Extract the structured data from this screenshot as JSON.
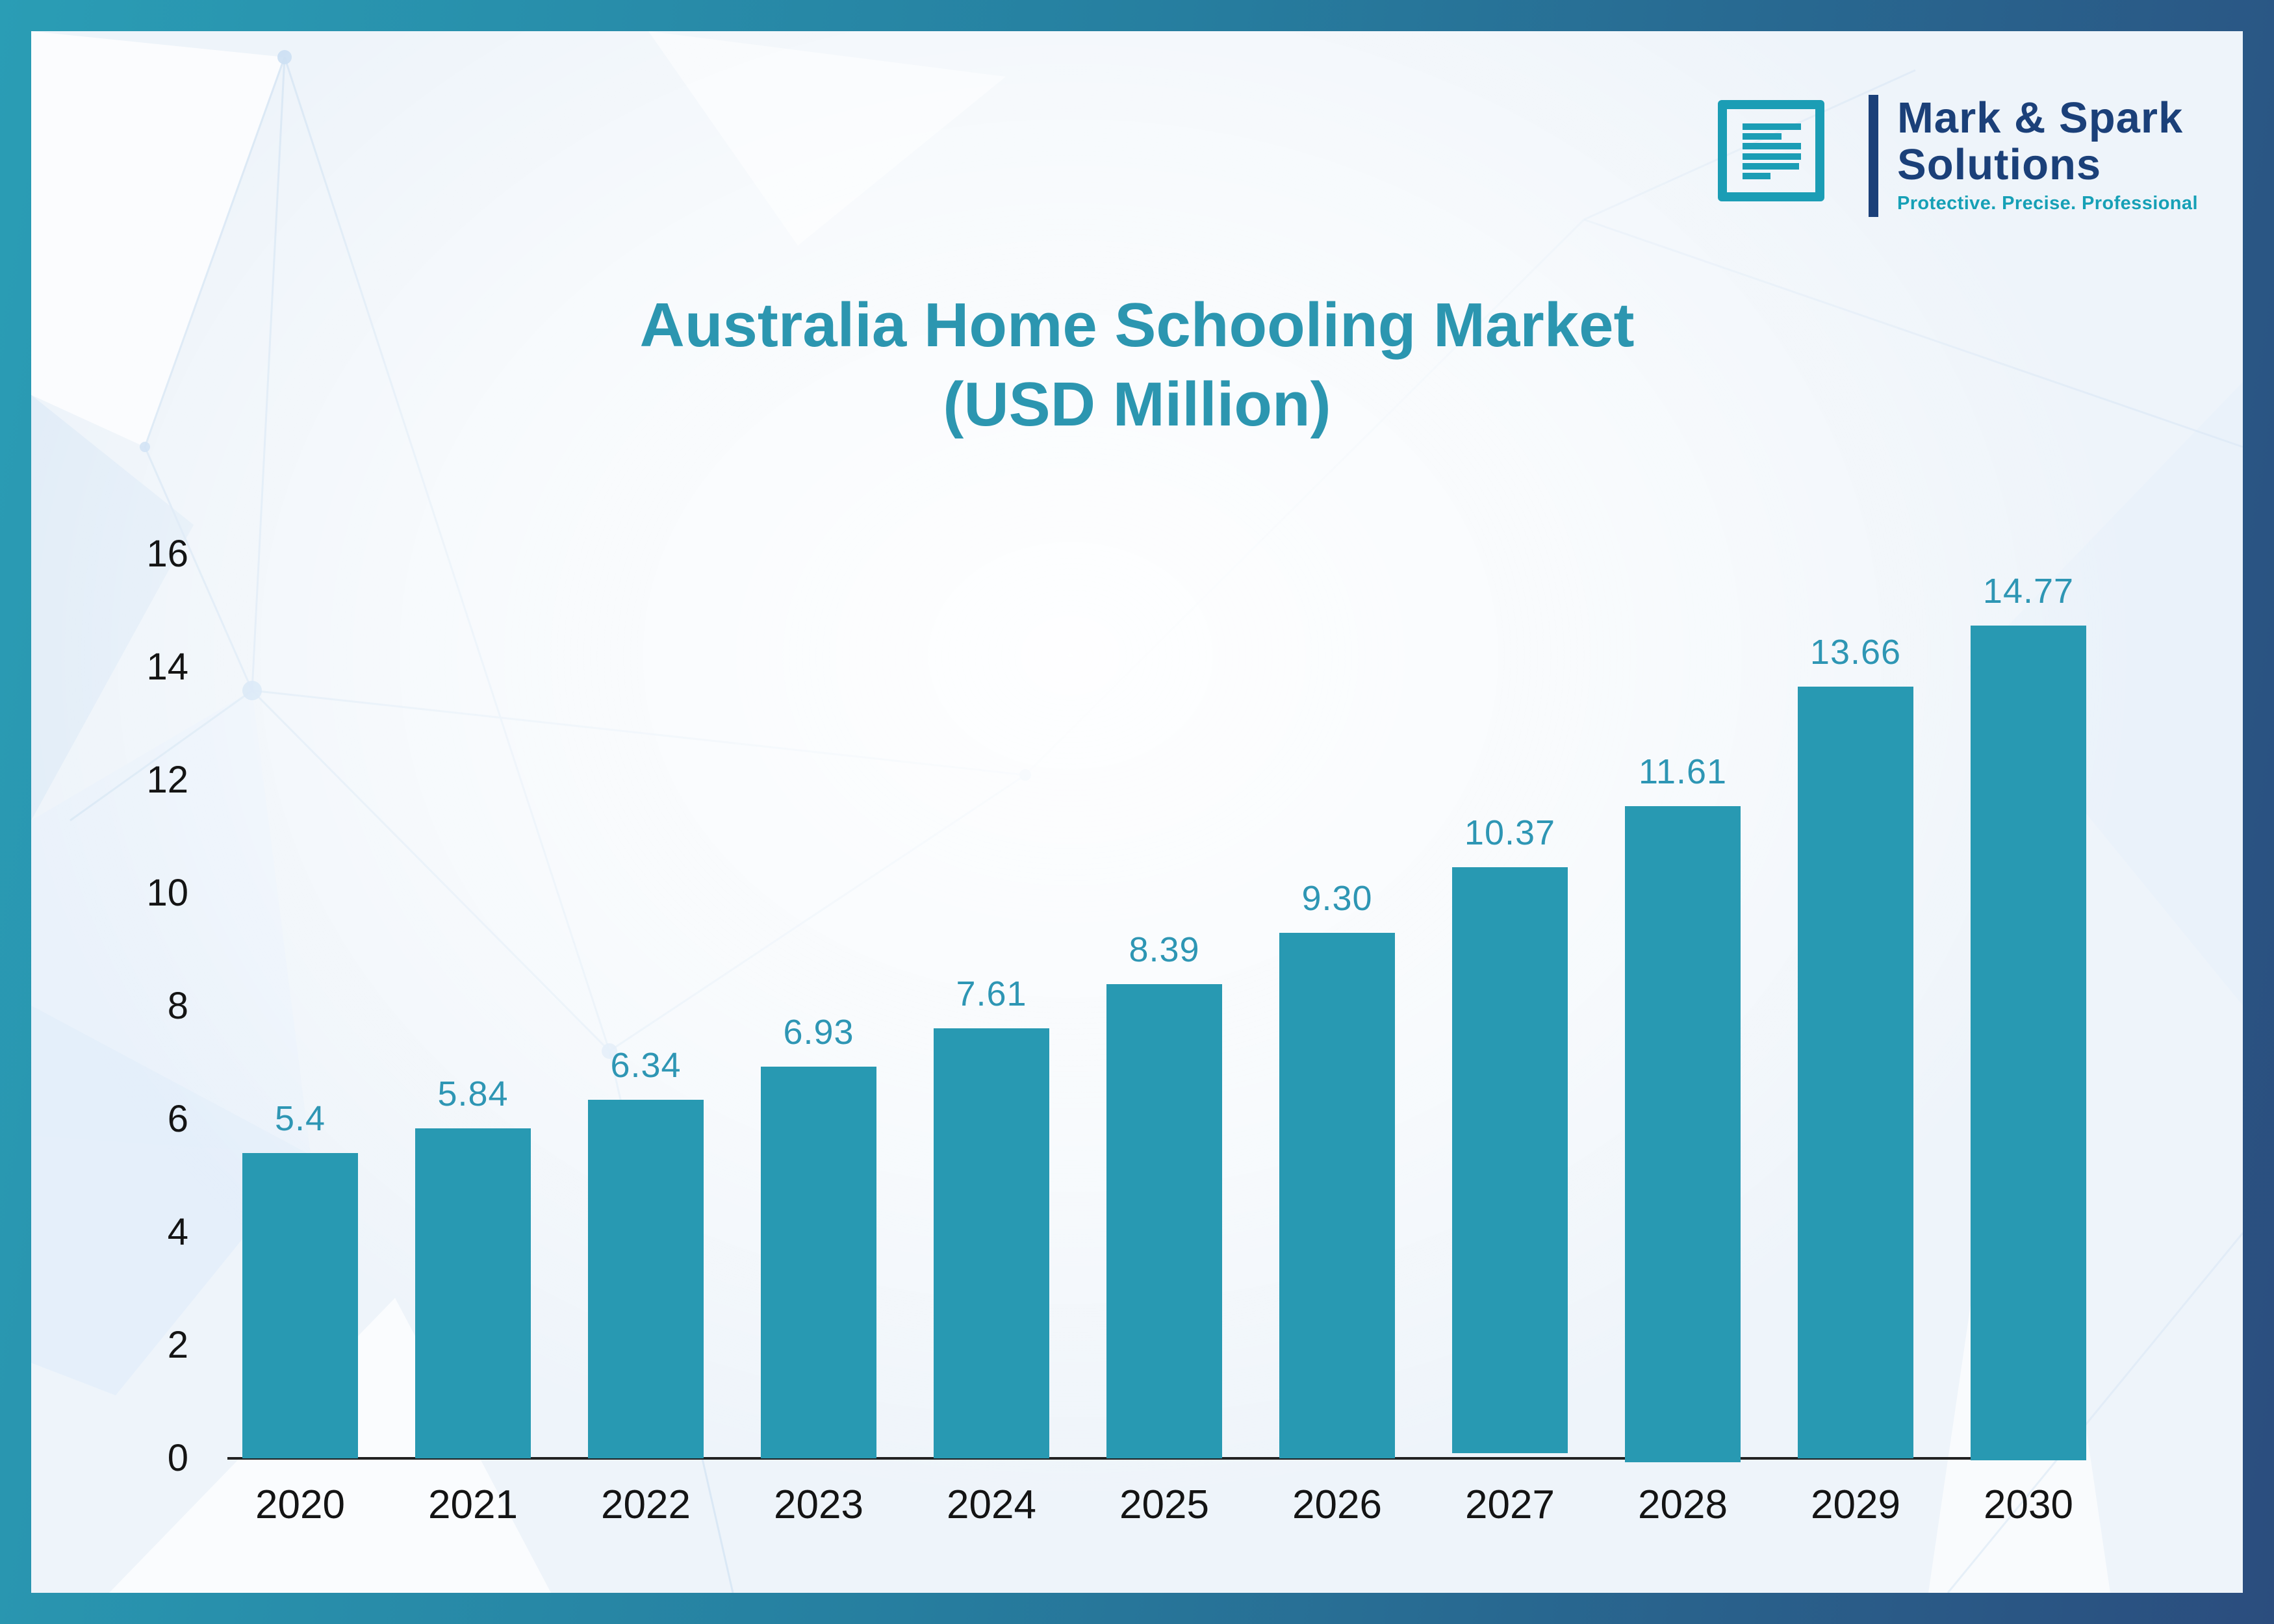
{
  "brand": {
    "name_line1": "Mark & Spark",
    "name_line2": "Solutions",
    "tagline": "Protective. Precise. Professional"
  },
  "title": {
    "line1": "Australia Home Schooling Market",
    "line2": "(USD Million)"
  },
  "chart_data": {
    "type": "bar",
    "title": "Australia Home Schooling Market (USD Million)",
    "categories": [
      "2020",
      "2021",
      "2022",
      "2023",
      "2024",
      "2025",
      "2026",
      "2027",
      "2028",
      "2029",
      "2030"
    ],
    "values": [
      5.4,
      5.84,
      6.34,
      6.93,
      7.61,
      8.39,
      9.3,
      10.37,
      11.61,
      13.66,
      14.77
    ],
    "value_labels": [
      "5.4",
      "5.84",
      "6.34",
      "6.93",
      "7.61",
      "8.39",
      "9.30",
      "10.37",
      "11.61",
      "13.66",
      "14.77"
    ],
    "xlabel": "",
    "ylabel": "",
    "ylim": [
      0,
      16
    ],
    "yticks": [
      0,
      2,
      4,
      6,
      8,
      10,
      12,
      14,
      16
    ],
    "grid": false,
    "legend": false,
    "bar_color": "#2899B2",
    "value_label_color": "#2E96B4"
  },
  "colors": {
    "frame_teal": "#2A9DB5",
    "frame_navy": "#2B4D7E",
    "content_bg": "#EEF4FA",
    "title_teal": "#2C96B0",
    "axis_text": "#141414",
    "axis_line": "#222222",
    "bar_color": "#2899B2",
    "value_label_color": "#2E96B4",
    "logo_teal": "#1B9DB5",
    "logo_navy": "#1B4079",
    "tagline_teal": "#16A0B6"
  }
}
